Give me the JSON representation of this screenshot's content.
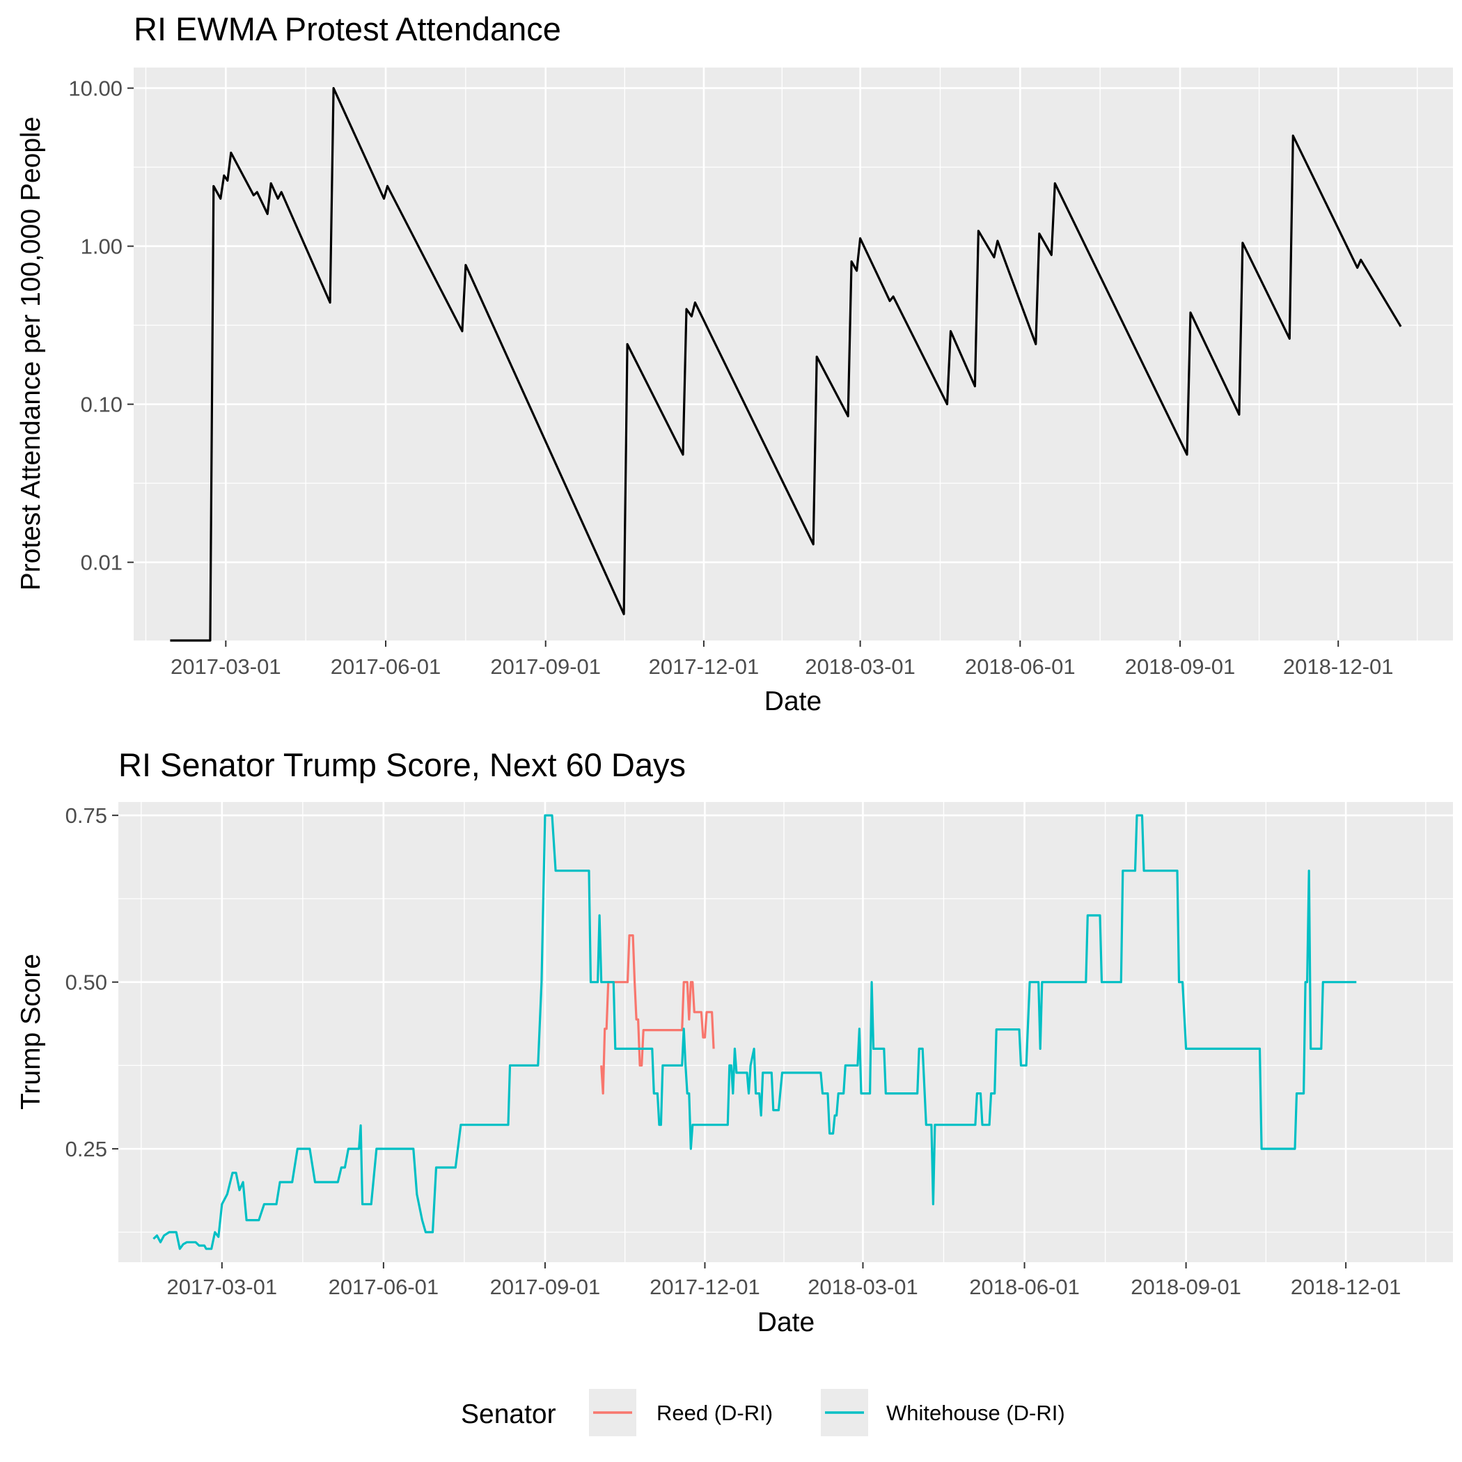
{
  "chart_data": [
    {
      "type": "line",
      "title": "RI EWMA Protest Attendance",
      "xlabel": "Date",
      "ylabel": "Protest Attendance per 100,000 People",
      "yscale": "log10",
      "ylim": [
        0.0032,
        13.5
      ],
      "xlim": [
        "2017-01-07",
        "2019-02-05"
      ],
      "x_ticks": [
        "2017-03-01",
        "2017-06-01",
        "2017-09-01",
        "2017-12-01",
        "2018-03-01",
        "2018-06-01",
        "2018-09-01",
        "2018-12-01"
      ],
      "y_ticks": [
        0.01,
        0.1,
        1,
        10
      ],
      "y_tick_labels": [
        "0.01",
        "0.10",
        "1.00",
        "10.00"
      ],
      "grid": true,
      "series": [
        {
          "color": "#000000",
          "points": [
            [
              "2017-01-28",
              0.0032
            ],
            [
              "2017-02-20",
              0.0032
            ],
            [
              "2017-02-22",
              2.4
            ],
            [
              "2017-02-26",
              2.0
            ],
            [
              "2017-02-28",
              2.8
            ],
            [
              "2017-03-02",
              2.6
            ],
            [
              "2017-03-04",
              3.9
            ],
            [
              "2017-03-17",
              2.1
            ],
            [
              "2017-03-19",
              2.2
            ],
            [
              "2017-03-25",
              1.6
            ],
            [
              "2017-03-27",
              2.5
            ],
            [
              "2017-03-31",
              2.0
            ],
            [
              "2017-04-02",
              2.2
            ],
            [
              "2017-04-30",
              0.44
            ],
            [
              "2017-05-02",
              10.0
            ],
            [
              "2017-05-31",
              2.0
            ],
            [
              "2017-06-02",
              2.4
            ],
            [
              "2017-07-15",
              0.29
            ],
            [
              "2017-07-17",
              0.76
            ],
            [
              "2017-10-16",
              0.0047
            ],
            [
              "2017-10-18",
              0.24
            ],
            [
              "2017-11-19",
              0.048
            ],
            [
              "2017-11-21",
              0.4
            ],
            [
              "2017-11-24",
              0.36
            ],
            [
              "2017-11-26",
              0.44
            ],
            [
              "2018-02-02",
              0.013
            ],
            [
              "2018-02-04",
              0.2
            ],
            [
              "2018-02-22",
              0.084
            ],
            [
              "2018-02-24",
              0.8
            ],
            [
              "2018-02-27",
              0.7
            ],
            [
              "2018-03-01",
              1.12
            ],
            [
              "2018-03-18",
              0.45
            ],
            [
              "2018-03-20",
              0.48
            ],
            [
              "2018-04-20",
              0.1
            ],
            [
              "2018-04-22",
              0.29
            ],
            [
              "2018-05-06",
              0.13
            ],
            [
              "2018-05-08",
              1.25
            ],
            [
              "2018-05-17",
              0.85
            ],
            [
              "2018-05-19",
              1.08
            ],
            [
              "2018-06-10",
              0.24
            ],
            [
              "2018-06-12",
              1.2
            ],
            [
              "2018-06-19",
              0.88
            ],
            [
              "2018-06-21",
              2.5
            ],
            [
              "2018-09-05",
              0.048
            ],
            [
              "2018-09-07",
              0.38
            ],
            [
              "2018-10-05",
              0.086
            ],
            [
              "2018-10-07",
              1.05
            ],
            [
              "2018-11-03",
              0.26
            ],
            [
              "2018-11-05",
              5.0
            ],
            [
              "2018-12-12",
              0.73
            ],
            [
              "2018-12-14",
              0.82
            ],
            [
              "2019-01-06",
              0.31
            ]
          ]
        }
      ]
    },
    {
      "type": "line",
      "title": "RI Senator Trump Score, Next 60 Days",
      "xlabel": "Date",
      "ylabel": "Trump Score",
      "ylim": [
        0.08,
        0.77
      ],
      "xlim": [
        "2017-01-01",
        "2019-01-31"
      ],
      "x_ticks": [
        "2017-03-01",
        "2017-06-01",
        "2017-09-01",
        "2017-12-01",
        "2018-03-01",
        "2018-06-01",
        "2018-09-01",
        "2018-12-01"
      ],
      "y_ticks": [
        0.25,
        0.5,
        0.75
      ],
      "y_tick_labels": [
        "0.25",
        "0.50",
        "0.75"
      ],
      "grid": true,
      "legend": {
        "title": "Senator",
        "position": "bottom"
      },
      "series": [
        {
          "name": "Reed (D-RI)",
          "color": "#f8766d",
          "points": [
            [
              "2017-10-03",
              0.375
            ],
            [
              "2017-10-04",
              0.333
            ],
            [
              "2017-10-05",
              0.43
            ],
            [
              "2017-10-06",
              0.43
            ],
            [
              "2017-10-07",
              0.5
            ],
            [
              "2017-10-18",
              0.5
            ],
            [
              "2017-10-19",
              0.57
            ],
            [
              "2017-10-21",
              0.57
            ],
            [
              "2017-10-22",
              0.5
            ],
            [
              "2017-10-23",
              0.444
            ],
            [
              "2017-10-24",
              0.444
            ],
            [
              "2017-10-25",
              0.375
            ],
            [
              "2017-10-26",
              0.375
            ],
            [
              "2017-10-27",
              0.428
            ],
            [
              "2017-11-18",
              0.428
            ],
            [
              "2017-11-19",
              0.5
            ],
            [
              "2017-11-21",
              0.5
            ],
            [
              "2017-11-22",
              0.444
            ],
            [
              "2017-11-23",
              0.5
            ],
            [
              "2017-11-24",
              0.5
            ],
            [
              "2017-11-25",
              0.455
            ],
            [
              "2017-11-29",
              0.455
            ],
            [
              "2017-11-30",
              0.417
            ],
            [
              "2017-12-01",
              0.417
            ],
            [
              "2017-12-02",
              0.455
            ],
            [
              "2017-12-05",
              0.455
            ],
            [
              "2017-12-06",
              0.4
            ]
          ]
        },
        {
          "name": "Whitehouse (D-RI)",
          "color": "#00bfc4",
          "points": [
            [
              "2017-01-21",
              0.115
            ],
            [
              "2017-01-23",
              0.12
            ],
            [
              "2017-01-25",
              0.11
            ],
            [
              "2017-01-27",
              0.12
            ],
            [
              "2017-01-30",
              0.125
            ],
            [
              "2017-02-03",
              0.125
            ],
            [
              "2017-02-05",
              0.1
            ],
            [
              "2017-02-07",
              0.107
            ],
            [
              "2017-02-09",
              0.11
            ],
            [
              "2017-02-14",
              0.11
            ],
            [
              "2017-02-16",
              0.105
            ],
            [
              "2017-02-19",
              0.105
            ],
            [
              "2017-02-20",
              0.1
            ],
            [
              "2017-02-23",
              0.1
            ],
            [
              "2017-02-25",
              0.125
            ],
            [
              "2017-02-27",
              0.118
            ],
            [
              "2017-03-01",
              0.167
            ],
            [
              "2017-03-04",
              0.182
            ],
            [
              "2017-03-07",
              0.214
            ],
            [
              "2017-03-09",
              0.214
            ],
            [
              "2017-03-11",
              0.188
            ],
            [
              "2017-03-13",
              0.2
            ],
            [
              "2017-03-15",
              0.143
            ],
            [
              "2017-03-22",
              0.143
            ],
            [
              "2017-03-25",
              0.167
            ],
            [
              "2017-04-01",
              0.167
            ],
            [
              "2017-04-03",
              0.2
            ],
            [
              "2017-04-10",
              0.2
            ],
            [
              "2017-04-13",
              0.25
            ],
            [
              "2017-04-20",
              0.25
            ],
            [
              "2017-04-23",
              0.2
            ],
            [
              "2017-05-06",
              0.2
            ],
            [
              "2017-05-08",
              0.222
            ],
            [
              "2017-05-10",
              0.222
            ],
            [
              "2017-05-12",
              0.25
            ],
            [
              "2017-05-18",
              0.25
            ],
            [
              "2017-05-19",
              0.285
            ],
            [
              "2017-05-20",
              0.167
            ],
            [
              "2017-05-25",
              0.167
            ],
            [
              "2017-05-28",
              0.25
            ],
            [
              "2017-06-18",
              0.25
            ],
            [
              "2017-06-20",
              0.182
            ],
            [
              "2017-06-23",
              0.143
            ],
            [
              "2017-06-25",
              0.125
            ],
            [
              "2017-06-29",
              0.125
            ],
            [
              "2017-07-01",
              0.222
            ],
            [
              "2017-07-12",
              0.222
            ],
            [
              "2017-07-15",
              0.286
            ],
            [
              "2017-08-11",
              0.286
            ],
            [
              "2017-08-12",
              0.375
            ],
            [
              "2017-08-28",
              0.375
            ],
            [
              "2017-08-30",
              0.5
            ],
            [
              "2017-09-01",
              0.75
            ],
            [
              "2017-09-05",
              0.75
            ],
            [
              "2017-09-07",
              0.667
            ],
            [
              "2017-09-26",
              0.667
            ],
            [
              "2017-09-27",
              0.5
            ],
            [
              "2017-10-01",
              0.5
            ],
            [
              "2017-10-02",
              0.6
            ],
            [
              "2017-10-03",
              0.5
            ],
            [
              "2017-10-10",
              0.5
            ],
            [
              "2017-10-11",
              0.4
            ],
            [
              "2017-11-01",
              0.4
            ],
            [
              "2017-11-02",
              0.333
            ],
            [
              "2017-11-04",
              0.333
            ],
            [
              "2017-11-05",
              0.286
            ],
            [
              "2017-11-06",
              0.286
            ],
            [
              "2017-11-07",
              0.375
            ],
            [
              "2017-11-18",
              0.375
            ],
            [
              "2017-11-19",
              0.43
            ],
            [
              "2017-11-20",
              0.375
            ],
            [
              "2017-11-21",
              0.333
            ],
            [
              "2017-11-22",
              0.333
            ],
            [
              "2017-11-23",
              0.25
            ],
            [
              "2017-11-24",
              0.286
            ],
            [
              "2017-12-14",
              0.286
            ],
            [
              "2017-12-15",
              0.375
            ],
            [
              "2017-12-16",
              0.375
            ],
            [
              "2017-12-17",
              0.333
            ],
            [
              "2017-12-18",
              0.4
            ],
            [
              "2017-12-19",
              0.364
            ],
            [
              "2017-12-25",
              0.364
            ],
            [
              "2017-12-26",
              0.333
            ],
            [
              "2017-12-27",
              0.375
            ],
            [
              "2017-12-29",
              0.4
            ],
            [
              "2017-12-30",
              0.333
            ],
            [
              "2018-01-01",
              0.333
            ],
            [
              "2018-01-02",
              0.3
            ],
            [
              "2018-01-03",
              0.364
            ],
            [
              "2018-01-08",
              0.364
            ],
            [
              "2018-01-09",
              0.308
            ],
            [
              "2018-01-12",
              0.308
            ],
            [
              "2018-01-14",
              0.364
            ],
            [
              "2018-02-05",
              0.364
            ],
            [
              "2018-02-06",
              0.333
            ],
            [
              "2018-02-09",
              0.333
            ],
            [
              "2018-02-10",
              0.273
            ],
            [
              "2018-02-12",
              0.273
            ],
            [
              "2018-02-13",
              0.3
            ],
            [
              "2018-02-14",
              0.3
            ],
            [
              "2018-02-15",
              0.333
            ],
            [
              "2018-02-18",
              0.333
            ],
            [
              "2018-02-19",
              0.375
            ],
            [
              "2018-02-26",
              0.375
            ],
            [
              "2018-02-27",
              0.43
            ],
            [
              "2018-02-28",
              0.333
            ],
            [
              "2018-03-05",
              0.333
            ],
            [
              "2018-03-06",
              0.5
            ],
            [
              "2018-03-07",
              0.4
            ],
            [
              "2018-03-13",
              0.4
            ],
            [
              "2018-03-14",
              0.333
            ],
            [
              "2018-04-01",
              0.333
            ],
            [
              "2018-04-02",
              0.4
            ],
            [
              "2018-04-04",
              0.4
            ],
            [
              "2018-04-06",
              0.286
            ],
            [
              "2018-04-09",
              0.286
            ],
            [
              "2018-04-10",
              0.167
            ],
            [
              "2018-04-11",
              0.286
            ],
            [
              "2018-05-04",
              0.286
            ],
            [
              "2018-05-05",
              0.333
            ],
            [
              "2018-05-07",
              0.333
            ],
            [
              "2018-05-08",
              0.286
            ],
            [
              "2018-05-12",
              0.286
            ],
            [
              "2018-05-13",
              0.333
            ],
            [
              "2018-05-15",
              0.333
            ],
            [
              "2018-05-16",
              0.429
            ],
            [
              "2018-05-29",
              0.429
            ],
            [
              "2018-05-30",
              0.375
            ],
            [
              "2018-06-02",
              0.375
            ],
            [
              "2018-06-04",
              0.5
            ],
            [
              "2018-06-09",
              0.5
            ],
            [
              "2018-06-10",
              0.4
            ],
            [
              "2018-06-11",
              0.5
            ],
            [
              "2018-07-06",
              0.5
            ],
            [
              "2018-07-07",
              0.6
            ],
            [
              "2018-07-14",
              0.6
            ],
            [
              "2018-07-15",
              0.5
            ],
            [
              "2018-07-26",
              0.5
            ],
            [
              "2018-07-27",
              0.667
            ],
            [
              "2018-08-03",
              0.667
            ],
            [
              "2018-08-04",
              0.75
            ],
            [
              "2018-08-07",
              0.75
            ],
            [
              "2018-08-08",
              0.667
            ],
            [
              "2018-08-27",
              0.667
            ],
            [
              "2018-08-28",
              0.5
            ],
            [
              "2018-08-30",
              0.5
            ],
            [
              "2018-09-01",
              0.4
            ],
            [
              "2018-10-13",
              0.4
            ],
            [
              "2018-10-14",
              0.25
            ],
            [
              "2018-11-02",
              0.25
            ],
            [
              "2018-11-03",
              0.333
            ],
            [
              "2018-11-07",
              0.333
            ],
            [
              "2018-11-08",
              0.5
            ],
            [
              "2018-11-09",
              0.5
            ],
            [
              "2018-11-10",
              0.667
            ],
            [
              "2018-11-11",
              0.4
            ],
            [
              "2018-11-17",
              0.4
            ],
            [
              "2018-11-18",
              0.5
            ],
            [
              "2018-12-07",
              0.5
            ]
          ]
        }
      ]
    }
  ]
}
